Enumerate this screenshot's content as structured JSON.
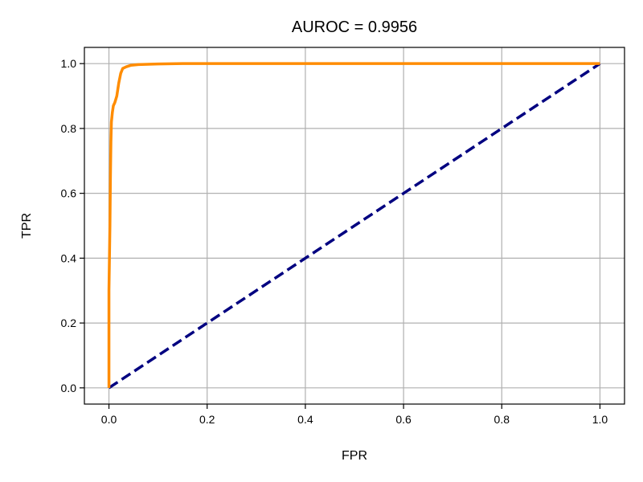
{
  "chart_data": {
    "type": "line",
    "title": "AUROC = 0.9956",
    "xlabel": "FPR",
    "ylabel": "TPR",
    "xlim": [
      -0.05,
      1.05
    ],
    "ylim": [
      -0.05,
      1.05
    ],
    "xticks": [
      0.0,
      0.2,
      0.4,
      0.6,
      0.8,
      1.0
    ],
    "yticks": [
      0.0,
      0.2,
      0.4,
      0.6,
      0.8,
      1.0
    ],
    "xtick_labels": [
      "0.0",
      "0.2",
      "0.4",
      "0.6",
      "0.8",
      "1.0"
    ],
    "ytick_labels": [
      "0.0",
      "0.2",
      "0.4",
      "0.6",
      "0.8",
      "1.0"
    ],
    "grid": true,
    "legend": "none",
    "series": [
      {
        "color": "#ff8c00",
        "style": "solid",
        "x": [
          0.0,
          0.0,
          0.002,
          0.003,
          0.004,
          0.005,
          0.007,
          0.009,
          0.012,
          0.016,
          0.02,
          0.024,
          0.028,
          0.035,
          0.045,
          0.06,
          0.08,
          0.1,
          0.15,
          0.2,
          0.4,
          0.6,
          0.8,
          1.0
        ],
        "y": [
          0.0,
          0.3,
          0.5,
          0.65,
          0.76,
          0.82,
          0.85,
          0.87,
          0.88,
          0.9,
          0.94,
          0.97,
          0.985,
          0.99,
          0.995,
          0.997,
          0.998,
          0.999,
          1.0,
          1.0,
          1.0,
          1.0,
          1.0,
          1.0
        ]
      },
      {
        "color": "#000080",
        "style": "dashed",
        "x": [
          0.0,
          1.0
        ],
        "y": [
          0.0,
          1.0
        ]
      }
    ]
  }
}
